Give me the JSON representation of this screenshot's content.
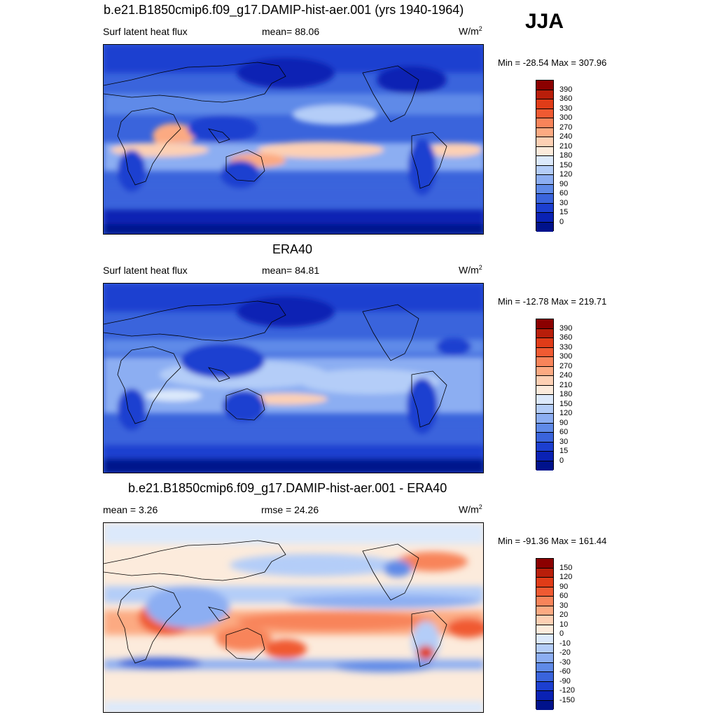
{
  "season": "JJA",
  "panels": [
    {
      "title": "b.e21.B1850cmip6.f09_g17.DAMIP-hist-aer.001 (yrs 1940-1964)",
      "left_label": "Surf latent heat flux",
      "center_label": "mean=  88.06",
      "units": "W/m",
      "units_sup": "2",
      "minmax": "Min = -28.54 Max = 307.96"
    },
    {
      "title": "ERA40",
      "left_label": "Surf latent heat flux",
      "center_label": "mean=  84.81",
      "units": "W/m",
      "units_sup": "2",
      "minmax": "Min = -12.78 Max = 219.71"
    },
    {
      "title": "b.e21.B1850cmip6.f09_g17.DAMIP-hist-aer.001 - ERA40",
      "left_label": "mean =   3.26",
      "center_label": "rmse =  24.26",
      "units": "W/m",
      "units_sup": "2",
      "minmax": "Min = -91.36 Max = 161.44"
    }
  ],
  "colorbars": {
    "flux": {
      "labels": [
        "390",
        "360",
        "330",
        "300",
        "270",
        "240",
        "210",
        "180",
        "150",
        "120",
        "90",
        "60",
        "30",
        "15",
        "0"
      ],
      "colors": [
        "#8b0000",
        "#b81e0a",
        "#e03c18",
        "#f05a32",
        "#f8845a",
        "#fcaa82",
        "#fdd0b4",
        "#fcebdc",
        "#dce9fb",
        "#b4cdf8",
        "#8caef2",
        "#5f8ae8",
        "#3a64dc",
        "#1c3fd0",
        "#0a22b4",
        "#00128c"
      ]
    },
    "diff": {
      "labels": [
        "150",
        "120",
        "90",
        "60",
        "30",
        "20",
        "10",
        "0",
        "-10",
        "-20",
        "-30",
        "-60",
        "-90",
        "-120",
        "-150"
      ],
      "colors": [
        "#8b0000",
        "#b81e0a",
        "#e03c18",
        "#f05a32",
        "#f8845a",
        "#fcaa82",
        "#fdd0b4",
        "#fcebdc",
        "#dce9fb",
        "#b4cdf8",
        "#8caef2",
        "#5f8ae8",
        "#3a64dc",
        "#1c3fd0",
        "#0a22b4",
        "#00128c"
      ]
    }
  }
}
